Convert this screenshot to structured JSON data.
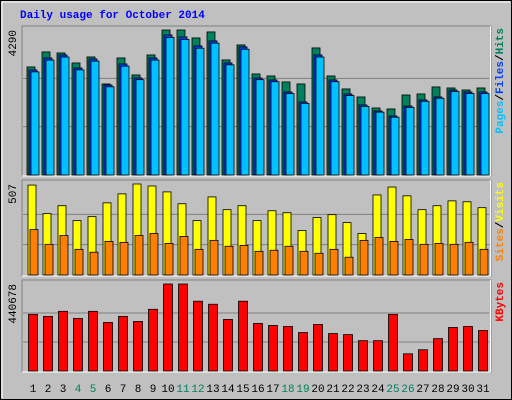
{
  "chart_data": [
    {
      "type": "bar",
      "title": "Daily usage for October 2014",
      "ylim": [
        0,
        4290
      ],
      "yticks": [
        4290
      ],
      "legend_separator": "/",
      "series": [
        {
          "name": "Hits",
          "color": "#00805c",
          "values": [
            3197,
            3641,
            3611,
            3315,
            3493,
            2694,
            3463,
            2960,
            3552,
            4290,
            4290,
            4055,
            4233,
            3404,
            3848,
            2990,
            2930,
            2753,
            2694,
            3759,
            2930,
            2546,
            2309,
            1983,
            1954,
            2368,
            2398,
            2605,
            2575,
            2516,
            2575
          ]
        },
        {
          "name": "Files",
          "color": "#0040ff",
          "values": [
            3108,
            3463,
            3552,
            3167,
            3434,
            2664,
            3286,
            2871,
            3463,
            4144,
            4085,
            3818,
            3966,
            3315,
            3789,
            2871,
            2812,
            2457,
            2161,
            3552,
            2812,
            2398,
            2072,
            1894,
            1746,
            2042,
            2220,
            2309,
            2516,
            2457,
            2457
          ]
        },
        {
          "name": "Pages",
          "color": "#00c0ff",
          "values": [
            3050,
            3400,
            3490,
            3110,
            3370,
            2610,
            3220,
            2820,
            3400,
            4070,
            4010,
            3750,
            3900,
            3260,
            3720,
            2820,
            2760,
            2410,
            2120,
            3490,
            2760,
            2350,
            2030,
            1860,
            1710,
            2000,
            2180,
            2270,
            2470,
            2410,
            2410
          ]
        }
      ]
    },
    {
      "type": "bar",
      "ylim": [
        0,
        507
      ],
      "yticks": [
        507
      ],
      "legend_separator": "/",
      "series": [
        {
          "name": "Visits",
          "color": "#ffff00",
          "values": [
            501,
            342,
            386,
            303,
            325,
            402,
            452,
            507,
            496,
            463,
            397,
            303,
            435,
            364,
            386,
            303,
            358,
            347,
            248,
            320,
            336,
            292,
            231,
            446,
            490,
            441,
            364,
            386,
            413,
            408,
            375
          ]
        },
        {
          "name": "Sites",
          "color": "#ff8000",
          "values": [
            253,
            171,
            220,
            143,
            127,
            187,
            182,
            220,
            231,
            176,
            215,
            143,
            193,
            160,
            165,
            132,
            138,
            160,
            132,
            121,
            143,
            99,
            193,
            209,
            187,
            198,
            171,
            176,
            171,
            182,
            143
          ]
        }
      ]
    },
    {
      "type": "bar",
      "ylim": [
        0,
        440678
      ],
      "yticks": [
        440678
      ],
      "categories": [
        "1",
        "2",
        "3",
        "4",
        "5",
        "6",
        "7",
        "8",
        "9",
        "10",
        "11",
        "12",
        "13",
        "14",
        "15",
        "16",
        "17",
        "18",
        "19",
        "20",
        "21",
        "22",
        "23",
        "24",
        "25",
        "26",
        "27",
        "28",
        "29",
        "30",
        "31"
      ],
      "category_colors": [
        "#000000",
        "#000000",
        "#000000",
        "#00805c",
        "#00805c",
        "#000000",
        "#000000",
        "#000000",
        "#000000",
        "#000000",
        "#00805c",
        "#00805c",
        "#000000",
        "#000000",
        "#000000",
        "#000000",
        "#000000",
        "#00805c",
        "#00805c",
        "#000000",
        "#000000",
        "#000000",
        "#000000",
        "#000000",
        "#00805c",
        "#00805c",
        "#000000",
        "#000000",
        "#000000",
        "#000000",
        "#000000"
      ],
      "series": [
        {
          "name": "KBytes",
          "color": "#ff0000",
          "values": [
            286944,
            276696,
            302316,
            266448,
            302316,
            245952,
            276696,
            251076,
            312564,
            440678,
            440678,
            353556,
            338184,
            261324,
            353556,
            240828,
            230580,
            225456,
            194712,
            235704,
            189588,
            184464,
            153720,
            153720,
            286944,
            87108,
            107604,
            163968,
            220332,
            225456,
            204960
          ]
        }
      ]
    }
  ]
}
